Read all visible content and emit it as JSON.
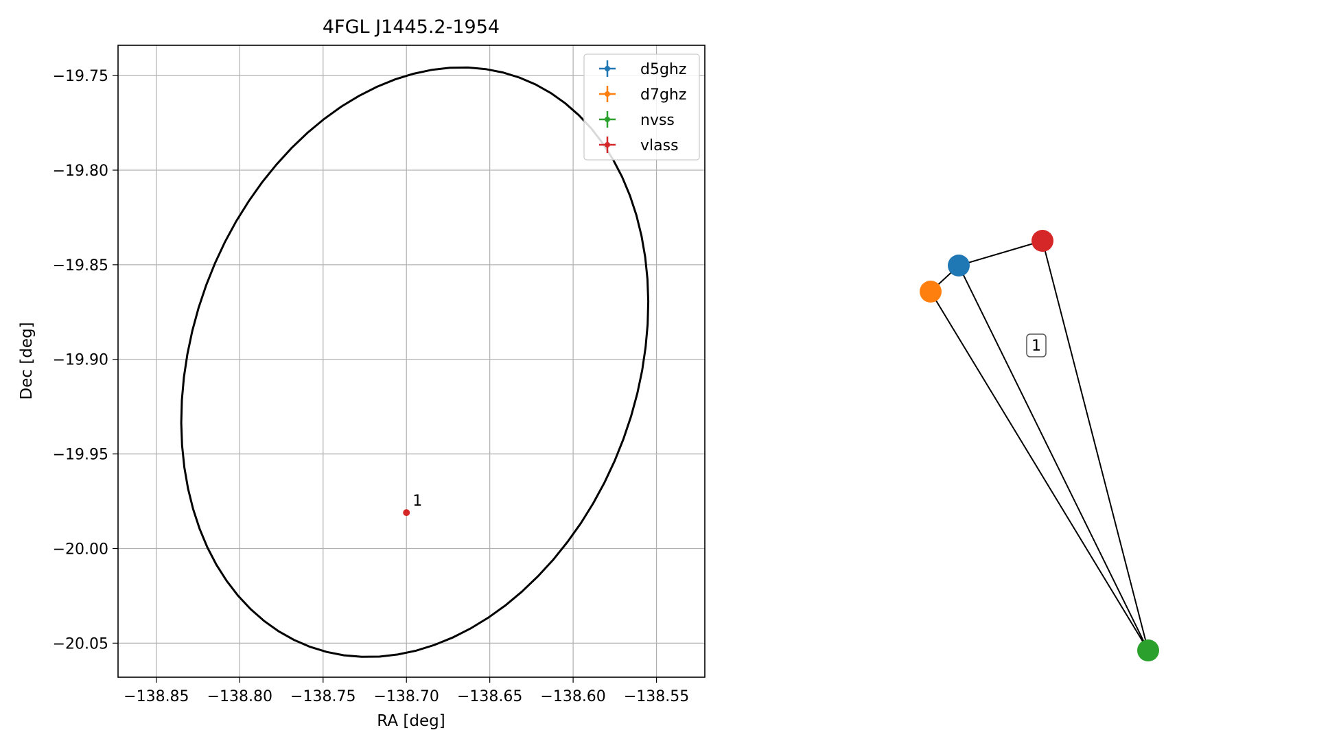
{
  "chart_data": [
    {
      "type": "scatter",
      "title": "4FGL J1445.2-1954",
      "xlabel": "RA [deg]",
      "ylabel": "Dec [deg]",
      "xlim": [
        -138.873,
        -138.521
      ],
      "ylim": [
        -20.068,
        -19.734
      ],
      "xticks": [
        -138.85,
        -138.8,
        -138.75,
        -138.7,
        -138.65,
        -138.6,
        -138.55
      ],
      "xtick_labels": [
        "−138.85",
        "−138.80",
        "−138.75",
        "−138.70",
        "−138.65",
        "−138.60",
        "−138.55"
      ],
      "yticks": [
        -19.75,
        -19.8,
        -19.85,
        -19.9,
        -19.95,
        -20.0,
        -20.05
      ],
      "ytick_labels": [
        "−19.75",
        "−19.80",
        "−19.85",
        "−19.90",
        "−19.95",
        "−20.00",
        "−20.05"
      ],
      "grid": true,
      "legend_position": "top-right",
      "legend": [
        {
          "name": "d5ghz",
          "color": "#1f77b4"
        },
        {
          "name": "d7ghz",
          "color": "#ff7f0e"
        },
        {
          "name": "nvss",
          "color": "#2ca02c"
        },
        {
          "name": "vlass",
          "color": "#d62728"
        }
      ],
      "ellipse": {
        "ra_center": -138.695,
        "dec_center": -19.9015,
        "color": "#000000"
      },
      "points": [
        {
          "label": "1",
          "ra": -138.7,
          "dec": -19.981,
          "color": "#d62728"
        }
      ]
    },
    {
      "type": "network",
      "nodes": [
        {
          "id": "d5ghz",
          "color": "#1f77b4"
        },
        {
          "id": "d7ghz",
          "color": "#ff7f0e"
        },
        {
          "id": "nvss",
          "color": "#2ca02c"
        },
        {
          "id": "vlass",
          "color": "#d62728"
        }
      ],
      "edges": [
        [
          "d5ghz",
          "d7ghz"
        ],
        [
          "d5ghz",
          "vlass"
        ],
        [
          "d5ghz",
          "nvss"
        ],
        [
          "d7ghz",
          "nvss"
        ],
        [
          "vlass",
          "nvss"
        ]
      ],
      "group_label": "1"
    }
  ]
}
